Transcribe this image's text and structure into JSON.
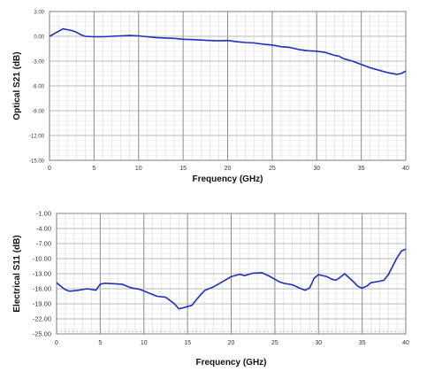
{
  "chart_data": [
    {
      "type": "line",
      "xlabel": "Frequency (GHz)",
      "ylabel": "Optical S21 (dB)",
      "xlim": [
        0,
        40
      ],
      "ylim": [
        -15,
        3
      ],
      "xticks": [
        "0",
        "5",
        "10",
        "15",
        "20",
        "25",
        "30",
        "35",
        "40"
      ],
      "yticks": [
        "3.00",
        "0.00",
        "-3.00",
        "-6.00",
        "-9.00",
        "-12.00",
        "-15.00"
      ],
      "grid": true,
      "line_color": "#1f2fbf",
      "series": [
        {
          "x": [
            0,
            0.5,
            1,
            1.5,
            2,
            2.5,
            3,
            3.5,
            4,
            5,
            6,
            7,
            8,
            9,
            10,
            11,
            12,
            13,
            14,
            15,
            16,
            17,
            18,
            19,
            20,
            21,
            22,
            23,
            24,
            25,
            26,
            27,
            28,
            29,
            30,
            31,
            32,
            32.5,
            33,
            34,
            35,
            36,
            37,
            38,
            39,
            39.5,
            40
          ],
          "y": [
            0.0,
            0.3,
            0.6,
            0.9,
            0.8,
            0.7,
            0.5,
            0.2,
            0.0,
            -0.05,
            -0.05,
            0.0,
            0.05,
            0.1,
            0.05,
            -0.05,
            -0.15,
            -0.2,
            -0.25,
            -0.35,
            -0.4,
            -0.45,
            -0.5,
            -0.55,
            -0.5,
            -0.65,
            -0.75,
            -0.8,
            -0.95,
            -1.05,
            -1.25,
            -1.35,
            -1.6,
            -1.75,
            -1.8,
            -1.95,
            -2.3,
            -2.4,
            -2.7,
            -3.0,
            -3.4,
            -3.8,
            -4.1,
            -4.4,
            -4.6,
            -4.5,
            -4.2
          ]
        }
      ]
    },
    {
      "type": "line",
      "xlabel": "Frequency  (GHz)",
      "ylabel": "Electrical S11 (dB)",
      "xlim": [
        0,
        40
      ],
      "ylim": [
        -25,
        -1
      ],
      "xticks": [
        "0",
        "5",
        "10",
        "15",
        "20",
        "25",
        "30",
        "35",
        "40"
      ],
      "yticks": [
        "-1.00",
        "-4.00",
        "-7.00",
        "-10.00",
        "-13.00",
        "-16.00",
        "-19.00",
        "-22.00",
        "-25.00"
      ],
      "grid": true,
      "line_color": "#1f2fbf",
      "series": [
        {
          "x": [
            0,
            0.5,
            1,
            1.5,
            2.5,
            3.5,
            4.5,
            5,
            5.5,
            6.5,
            7.5,
            8.5,
            9.5,
            10.5,
            11.5,
            12.5,
            13.5,
            14,
            14.5,
            15.5,
            16,
            16.5,
            17,
            18,
            19,
            20,
            21,
            21.5,
            22.5,
            23.5,
            24.5,
            25.5,
            26,
            27,
            28,
            28.5,
            29,
            29.5,
            30,
            31,
            31.5,
            32,
            32.5,
            33,
            34,
            34.5,
            35,
            35.5,
            36,
            37,
            37.5,
            38,
            38.5,
            39,
            39.5,
            40
          ],
          "y": [
            -14.8,
            -15.5,
            -16.2,
            -16.5,
            -16.3,
            -16.0,
            -16.3,
            -15.1,
            -14.9,
            -15.0,
            -15.1,
            -15.8,
            -16.1,
            -16.8,
            -17.5,
            -17.7,
            -19.0,
            -20.0,
            -19.8,
            -19.3,
            -18.2,
            -17.2,
            -16.3,
            -15.6,
            -14.6,
            -13.6,
            -13.1,
            -13.4,
            -12.9,
            -12.8,
            -13.6,
            -14.6,
            -14.9,
            -15.2,
            -16.0,
            -16.3,
            -15.8,
            -13.9,
            -13.2,
            -13.6,
            -14.1,
            -14.3,
            -13.7,
            -13.0,
            -14.6,
            -15.5,
            -15.9,
            -15.5,
            -14.8,
            -14.5,
            -14.3,
            -13.2,
            -11.5,
            -9.8,
            -8.5,
            -8.1
          ]
        },
        {
          "x": [
            0,
            5,
            10,
            15,
            20,
            25,
            30,
            35,
            40
          ],
          "y": [
            -24.5,
            -24.5,
            -24.5,
            -24.5,
            -24.5,
            -24.5,
            -24.5,
            -24.5,
            -24.5
          ],
          "style": "dotted"
        }
      ]
    }
  ]
}
